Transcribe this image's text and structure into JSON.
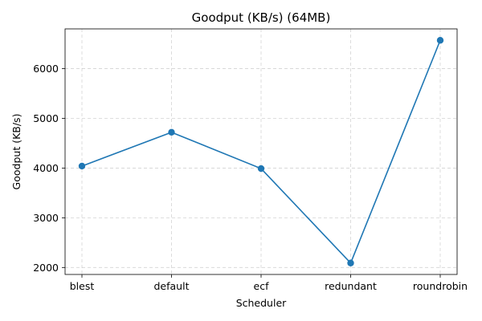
{
  "chart_data": {
    "type": "line",
    "title": "Goodput (KB/s) (64MB)",
    "xlabel": "Scheduler",
    "ylabel": "Goodput (KB/s)",
    "categories": [
      "blest",
      "default",
      "ecf",
      "redundant",
      "roundrobin"
    ],
    "series": [
      {
        "values": [
          4040,
          4720,
          3990,
          2090,
          6570
        ],
        "color": "#1f77b4",
        "marker": "circle"
      }
    ],
    "ylim": [
      1860,
      6800
    ],
    "yticks": [
      2000,
      3000,
      4000,
      5000,
      6000
    ],
    "grid": true,
    "grid_style": "dashed",
    "legend": false
  }
}
